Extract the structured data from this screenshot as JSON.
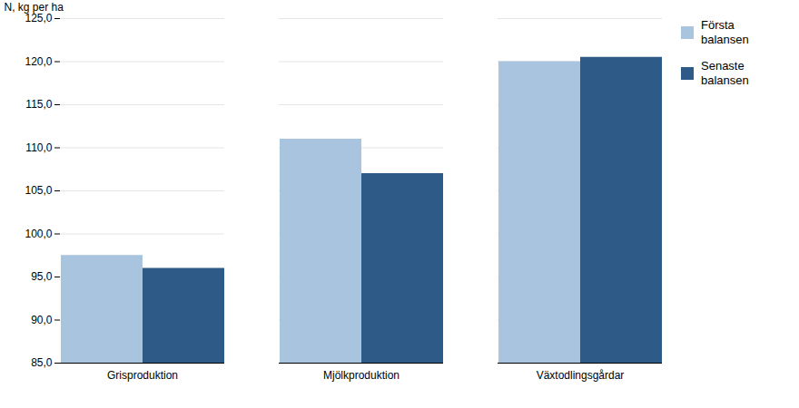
{
  "chart_data": {
    "type": "bar",
    "categories": [
      "Grisproduktion",
      "Mjölkproduktion",
      "Växtodlingsgårdar"
    ],
    "series": [
      {
        "name": "Första\nbalansen",
        "color": "#a8c4de",
        "values": [
          97.5,
          111.0,
          120.0
        ]
      },
      {
        "name": "Senaste\nbalansen",
        "color": "#2d5a87",
        "values": [
          96.0,
          107.0,
          120.5
        ]
      }
    ],
    "ylabel": "N, kg per ha",
    "ylim": [
      85.0,
      125.0
    ],
    "yticks": [
      {
        "value": 85.0,
        "label": "85,0"
      },
      {
        "value": 90.0,
        "label": "90,0"
      },
      {
        "value": 95.0,
        "label": "95,0"
      },
      {
        "value": 100.0,
        "label": "100,0"
      },
      {
        "value": 105.0,
        "label": "105,0"
      },
      {
        "value": 110.0,
        "label": "110,0"
      },
      {
        "value": 115.0,
        "label": "115,0"
      },
      {
        "value": 120.0,
        "label": "120,0"
      },
      {
        "value": 125.0,
        "label": "125,0"
      }
    ],
    "grid": true,
    "legend": "upper right"
  }
}
